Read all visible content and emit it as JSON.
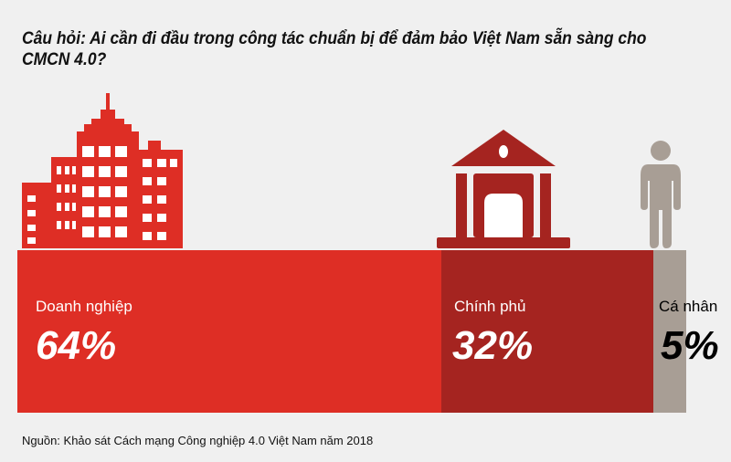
{
  "title": "Câu hỏi: Ai cần đi đầu trong công tác chuẩn bị để đảm bảo Việt Nam sẵn sàng cho CMCN 4.0?",
  "source": "Nguồn: Khảo sát Cách mạng Công nghiệp 4.0 Việt Nam năm 2018",
  "chart_data": {
    "type": "bar",
    "orientation": "horizontal-proportional",
    "title": "Câu hỏi: Ai cần đi đầu trong công tác chuẩn bị để đảm bảo Việt Nam sẵn sàng cho CMCN 4.0?",
    "categories": [
      "Doanh nghiệp",
      "Chính phủ",
      "Cá nhân"
    ],
    "values": [
      64,
      32,
      5
    ],
    "value_labels": [
      "64%",
      "32%",
      "5%"
    ],
    "colors": [
      "#de2e25",
      "#a52420",
      "#a89e95"
    ],
    "text_colors": [
      "#ffffff",
      "#ffffff",
      "#000000"
    ],
    "icons": [
      "city-buildings-icon",
      "government-building-icon",
      "person-icon"
    ],
    "grid": false,
    "legend": "none"
  }
}
